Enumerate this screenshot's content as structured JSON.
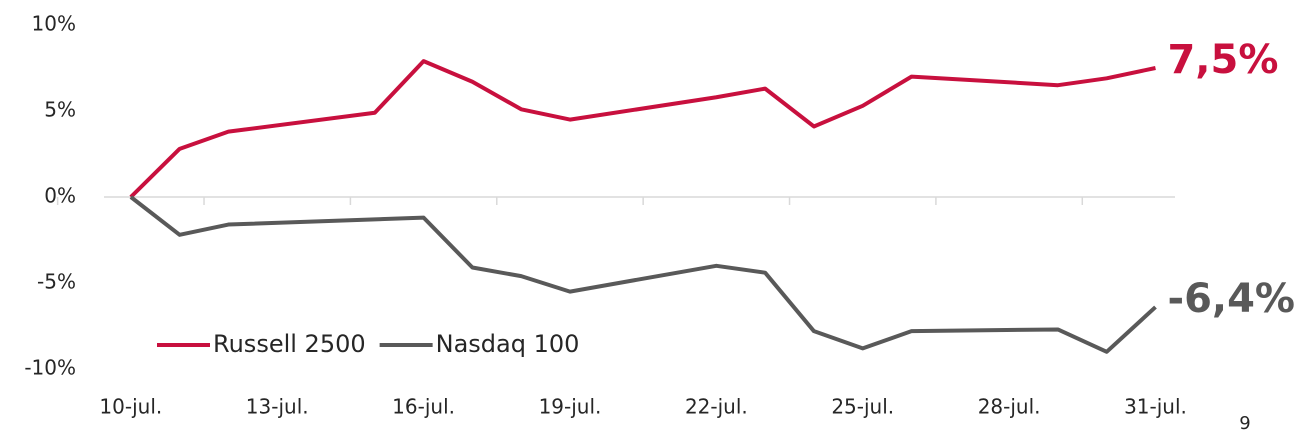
{
  "chart_data": {
    "type": "line",
    "x": [
      10,
      11,
      12,
      15,
      16,
      17,
      18,
      19,
      22,
      23,
      24,
      25,
      26,
      29,
      30,
      31
    ],
    "series": [
      {
        "name": "Russell 2500",
        "color": "#c8103e",
        "values": [
          0,
          2.8,
          3.8,
          4.9,
          7.9,
          6.7,
          5.1,
          4.5,
          5.8,
          6.3,
          4.1,
          5.3,
          7.0,
          6.5,
          6.9,
          7.5
        ],
        "value_labels": {
          "15": "7,5%"
        }
      },
      {
        "name": "Nasdaq 100",
        "color": "#595959",
        "values": [
          0,
          -2.2,
          -1.6,
          -1.3,
          -1.2,
          -4.1,
          -4.6,
          -5.5,
          -4.0,
          -4.4,
          -7.8,
          -8.8,
          -7.8,
          -7.7,
          -9.0,
          -6.4
        ],
        "value_labels": {
          "15": "-6,4%"
        }
      }
    ],
    "xlim": [
      9.45,
      31.4
    ],
    "xticks": [
      {
        "value": 10,
        "label": "10-jul."
      },
      {
        "value": 13,
        "label": "13-jul."
      },
      {
        "value": 16,
        "label": "16-jul."
      },
      {
        "value": 19,
        "label": "19-jul."
      },
      {
        "value": 22,
        "label": "22-jul."
      },
      {
        "value": 25,
        "label": "25-jul."
      },
      {
        "value": 28,
        "label": "28-jul."
      },
      {
        "value": 31,
        "label": "31-jul."
      }
    ],
    "ylim": [
      -10,
      10
    ],
    "yticks": [
      {
        "value": 10,
        "label": "10%"
      },
      {
        "value": 5,
        "label": "5%"
      },
      {
        "value": 0,
        "label": "0%"
      },
      {
        "value": -5,
        "label": "-5%"
      },
      {
        "value": -10,
        "label": "-10%"
      }
    ],
    "legend": "lower left",
    "page_number": "9"
  }
}
